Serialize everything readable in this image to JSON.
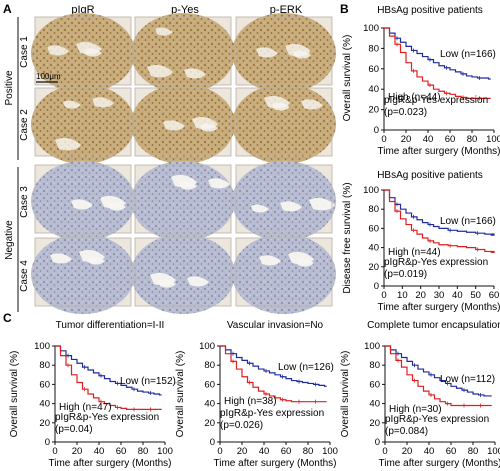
{
  "panel_labels": {
    "a": "A",
    "b": "B",
    "c": "C"
  },
  "ihc": {
    "columns": [
      "pIgR",
      "p-Yes",
      "p-ERK"
    ],
    "group_labels": [
      "Positive",
      "Negative"
    ],
    "case_labels": [
      "Case 1",
      "Case 2",
      "Case 3",
      "Case 4"
    ],
    "scale_bar": "100µm",
    "colors": {
      "positive_stain": "#b8955a",
      "positive_light": "#d7c29a",
      "negative_stain": "#9aa4bf",
      "negative_light": "#cbd0de",
      "background": "#ece6dc"
    }
  },
  "chart_data": [
    {
      "type": "line",
      "title": "HBsAg positive patients",
      "ylabel": "Overall survival (%)",
      "xlabel": "Time after surgery (Months)",
      "xlim": [
        0,
        100
      ],
      "ylim": [
        0,
        100
      ],
      "xticks": [
        0,
        20,
        40,
        60,
        80,
        100
      ],
      "yticks": [
        0,
        20,
        40,
        60,
        80,
        100
      ],
      "series": [
        {
          "name": "Low (n=166)",
          "color": "#1f2c9c",
          "x": [
            0,
            5,
            10,
            15,
            20,
            25,
            30,
            35,
            40,
            45,
            50,
            55,
            60,
            65,
            70,
            75,
            80,
            85,
            90,
            95
          ],
          "y": [
            100,
            95,
            90,
            86,
            82,
            78,
            75,
            72,
            69,
            66,
            63,
            61,
            59,
            57,
            55,
            53,
            52,
            51,
            51,
            50
          ]
        },
        {
          "name": "High (n=44)",
          "color": "#e02020",
          "x": [
            0,
            5,
            10,
            15,
            20,
            25,
            30,
            35,
            40,
            45,
            50,
            55,
            60,
            65,
            70,
            75,
            80,
            85,
            90,
            95
          ],
          "y": [
            100,
            92,
            84,
            76,
            66,
            58,
            52,
            48,
            44,
            40,
            38,
            36,
            35,
            33,
            32,
            31,
            31,
            31,
            31,
            31
          ]
        }
      ],
      "annotations": [
        "pIgR&p-Yes expression",
        "(p=0.023)"
      ]
    },
    {
      "type": "line",
      "title": "HBsAg positive patients",
      "ylabel": "Disease free survival (%)",
      "xlabel": "Time after surgery (Months)",
      "xlim": [
        0,
        60
      ],
      "ylim": [
        0,
        100
      ],
      "xticks": [
        0,
        10,
        20,
        30,
        40,
        50,
        60
      ],
      "yticks": [
        0,
        20,
        40,
        60,
        80,
        100
      ],
      "series": [
        {
          "name": "Low (n=166)",
          "color": "#1f2c9c",
          "x": [
            0,
            3,
            6,
            9,
            12,
            15,
            18,
            21,
            24,
            27,
            30,
            35,
            40,
            45,
            50,
            55,
            60
          ],
          "y": [
            100,
            92,
            85,
            80,
            76,
            72,
            69,
            66,
            64,
            62,
            60,
            58,
            57,
            56,
            55,
            54,
            53
          ]
        },
        {
          "name": "High (n=44)",
          "color": "#e02020",
          "x": [
            0,
            3,
            6,
            9,
            12,
            15,
            18,
            21,
            24,
            27,
            30,
            35,
            40,
            45,
            50,
            55,
            60
          ],
          "y": [
            100,
            88,
            78,
            70,
            64,
            58,
            54,
            50,
            47,
            45,
            43,
            42,
            41,
            40,
            38,
            36,
            35
          ]
        }
      ],
      "annotations": [
        "pIgR&p-Yes expression",
        "(p=0.019)"
      ]
    },
    {
      "type": "line",
      "title": "Tumor differentiation=I-II",
      "ylabel": "Overall survival (%)",
      "xlabel": "Time after surgery (Months)",
      "xlim": [
        0,
        100
      ],
      "ylim": [
        0,
        100
      ],
      "xticks": [
        0,
        20,
        40,
        60,
        80,
        100
      ],
      "yticks": [
        0,
        20,
        40,
        60,
        80,
        100
      ],
      "series": [
        {
          "name": "Low (n=152)",
          "color": "#1f2c9c",
          "x": [
            0,
            5,
            10,
            15,
            20,
            25,
            30,
            35,
            40,
            45,
            50,
            55,
            60,
            65,
            70,
            75,
            80,
            85,
            90,
            95
          ],
          "y": [
            100,
            95,
            90,
            86,
            82,
            78,
            75,
            72,
            69,
            66,
            63,
            61,
            59,
            57,
            55,
            53,
            52,
            51,
            50,
            49
          ]
        },
        {
          "name": "High (n=47)",
          "color": "#e02020",
          "x": [
            0,
            5,
            10,
            15,
            20,
            25,
            30,
            35,
            40,
            45,
            50,
            55,
            60,
            65,
            70,
            75,
            80,
            85,
            90,
            95
          ],
          "y": [
            100,
            90,
            80,
            70,
            62,
            55,
            50,
            46,
            42,
            40,
            38,
            36,
            35,
            34,
            34,
            34,
            34,
            34,
            34,
            34
          ]
        }
      ],
      "annotations": [
        "pIgR&p-Yes expression",
        "(p=0.04)"
      ]
    },
    {
      "type": "line",
      "title": "Vascular invasion=No",
      "ylabel": "Overall survival (%)",
      "xlabel": "Time after surgery (Months)",
      "xlim": [
        0,
        100
      ],
      "ylim": [
        0,
        100
      ],
      "xticks": [
        0,
        20,
        40,
        60,
        80,
        100
      ],
      "yticks": [
        0,
        20,
        40,
        60,
        80,
        100
      ],
      "series": [
        {
          "name": "Low (n=126)",
          "color": "#1f2c9c",
          "x": [
            0,
            5,
            10,
            15,
            20,
            25,
            30,
            35,
            40,
            45,
            50,
            55,
            60,
            65,
            70,
            75,
            80,
            85,
            90,
            95
          ],
          "y": [
            100,
            96,
            92,
            88,
            85,
            82,
            79,
            76,
            74,
            72,
            70,
            68,
            66,
            64,
            63,
            62,
            61,
            60,
            59,
            58
          ]
        },
        {
          "name": "High (n=38)",
          "color": "#e02020",
          "x": [
            0,
            5,
            10,
            15,
            20,
            25,
            30,
            35,
            40,
            45,
            50,
            55,
            60,
            65,
            70,
            75,
            80,
            85,
            90,
            95
          ],
          "y": [
            100,
            92,
            84,
            76,
            68,
            62,
            57,
            53,
            50,
            48,
            46,
            44,
            43,
            42,
            42,
            42,
            42,
            42,
            42,
            42
          ]
        }
      ],
      "annotations": [
        "pIgR&p-Yes expression",
        "(p=0.026)"
      ]
    },
    {
      "type": "line",
      "title": "Complete tumor encapsulation",
      "ylabel": "Overall survival (%)",
      "xlabel": "Time after surgery (Months)",
      "xlim": [
        0,
        100
      ],
      "ylim": [
        0,
        100
      ],
      "xticks": [
        0,
        20,
        40,
        60,
        80,
        100
      ],
      "yticks": [
        0,
        20,
        40,
        60,
        80,
        100
      ],
      "series": [
        {
          "name": "Low (n=112)",
          "color": "#1f2c9c",
          "x": [
            0,
            5,
            10,
            15,
            20,
            25,
            30,
            35,
            40,
            45,
            50,
            55,
            60,
            65,
            70,
            75,
            80,
            85,
            90,
            95
          ],
          "y": [
            100,
            96,
            92,
            88,
            84,
            80,
            76,
            73,
            70,
            67,
            64,
            61,
            58,
            56,
            54,
            52,
            50,
            49,
            48,
            48
          ]
        },
        {
          "name": "High (n=30)",
          "color": "#e02020",
          "x": [
            0,
            5,
            10,
            15,
            20,
            25,
            30,
            35,
            40,
            45,
            50,
            55,
            60,
            65,
            70,
            75,
            80,
            85,
            90,
            95
          ],
          "y": [
            100,
            92,
            85,
            78,
            70,
            64,
            58,
            53,
            49,
            45,
            42,
            40,
            38,
            38,
            38,
            38,
            38,
            38,
            38,
            38
          ]
        }
      ],
      "annotations": [
        "pIgR&p-Yes expression",
        "(p=0.084)"
      ]
    }
  ]
}
